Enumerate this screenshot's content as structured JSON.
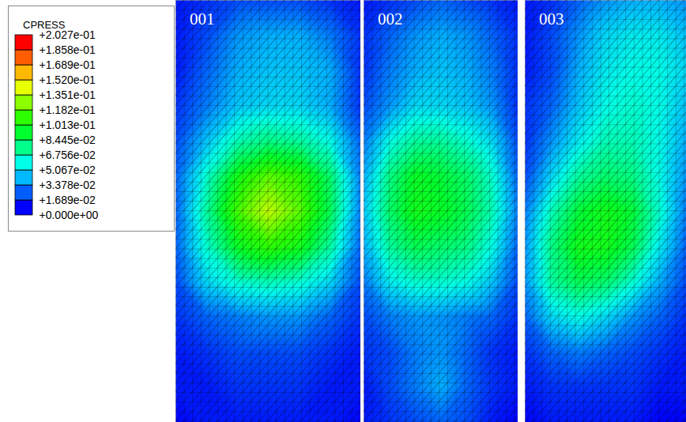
{
  "chart_data": {
    "type": "heatmap",
    "tick_labels": false,
    "legend": "top-left",
    "panels": [
      {
        "title": "001",
        "values": [
          [
            0.005,
            0.01,
            0.015,
            0.015,
            0.015,
            0.01,
            0.005
          ],
          [
            0.005,
            0.015,
            0.03,
            0.035,
            0.035,
            0.025,
            0.01
          ],
          [
            0.005,
            0.02,
            0.035,
            0.04,
            0.04,
            0.035,
            0.01
          ],
          [
            0.01,
            0.025,
            0.04,
            0.045,
            0.045,
            0.035,
            0.01
          ],
          [
            0.015,
            0.04,
            0.065,
            0.075,
            0.07,
            0.055,
            0.02
          ],
          [
            0.02,
            0.06,
            0.1,
            0.12,
            0.11,
            0.08,
            0.025
          ],
          [
            0.02,
            0.07,
            0.115,
            0.14,
            0.12,
            0.085,
            0.025
          ],
          [
            0.02,
            0.06,
            0.095,
            0.11,
            0.1,
            0.07,
            0.02
          ],
          [
            0.015,
            0.045,
            0.06,
            0.065,
            0.06,
            0.045,
            0.015
          ],
          [
            0.01,
            0.02,
            0.025,
            0.03,
            0.03,
            0.02,
            0.01
          ],
          [
            0.005,
            0.01,
            0.015,
            0.015,
            0.015,
            0.01,
            0.005
          ],
          [
            0.005,
            0.005,
            0.01,
            0.01,
            0.01,
            0.005,
            0.005
          ],
          [
            0,
            0.005,
            0.005,
            0.005,
            0.005,
            0.005,
            0
          ]
        ]
      },
      {
        "title": "002",
        "values": [
          [
            0.005,
            0.01,
            0.015,
            0.02,
            0.015,
            0.01,
            0.005
          ],
          [
            0.01,
            0.02,
            0.03,
            0.035,
            0.03,
            0.02,
            0.01
          ],
          [
            0.01,
            0.025,
            0.035,
            0.04,
            0.035,
            0.025,
            0.01
          ],
          [
            0.015,
            0.03,
            0.045,
            0.045,
            0.04,
            0.03,
            0.01
          ],
          [
            0.025,
            0.055,
            0.07,
            0.07,
            0.06,
            0.045,
            0.015
          ],
          [
            0.035,
            0.075,
            0.095,
            0.09,
            0.08,
            0.06,
            0.02
          ],
          [
            0.04,
            0.08,
            0.1,
            0.095,
            0.085,
            0.065,
            0.025
          ],
          [
            0.035,
            0.07,
            0.085,
            0.08,
            0.075,
            0.055,
            0.02
          ],
          [
            0.025,
            0.05,
            0.06,
            0.06,
            0.055,
            0.04,
            0.015
          ],
          [
            0.015,
            0.025,
            0.03,
            0.03,
            0.025,
            0.02,
            0.01
          ],
          [
            0.01,
            0.015,
            0.025,
            0.03,
            0.02,
            0.01,
            0.005
          ],
          [
            0.005,
            0.015,
            0.025,
            0.035,
            0.02,
            0.01,
            0.005
          ],
          [
            0.005,
            0.01,
            0.015,
            0.02,
            0.015,
            0.005,
            0
          ]
        ]
      },
      {
        "title": "003",
        "values": [
          [
            0.005,
            0.01,
            0.02,
            0.03,
            0.035,
            0.035,
            0.03
          ],
          [
            0.005,
            0.015,
            0.03,
            0.045,
            0.05,
            0.05,
            0.04
          ],
          [
            0.005,
            0.015,
            0.035,
            0.05,
            0.055,
            0.055,
            0.045
          ],
          [
            0.01,
            0.02,
            0.04,
            0.055,
            0.06,
            0.055,
            0.04
          ],
          [
            0.01,
            0.03,
            0.05,
            0.065,
            0.065,
            0.055,
            0.035
          ],
          [
            0.015,
            0.045,
            0.07,
            0.08,
            0.075,
            0.055,
            0.03
          ],
          [
            0.025,
            0.065,
            0.09,
            0.1,
            0.09,
            0.06,
            0.025
          ],
          [
            0.03,
            0.075,
            0.1,
            0.1,
            0.085,
            0.05,
            0.02
          ],
          [
            0.03,
            0.07,
            0.085,
            0.08,
            0.06,
            0.035,
            0.015
          ],
          [
            0.02,
            0.045,
            0.055,
            0.045,
            0.03,
            0.02,
            0.01
          ],
          [
            0.01,
            0.02,
            0.025,
            0.02,
            0.015,
            0.01,
            0.005
          ],
          [
            0.005,
            0.01,
            0.01,
            0.01,
            0.01,
            0.005,
            0.005
          ],
          [
            0,
            0.005,
            0.005,
            0.005,
            0.005,
            0,
            0
          ]
        ]
      }
    ],
    "colorbar": {
      "label": "CPRESS",
      "range": [
        0,
        0.2027
      ],
      "ticks": [
        {
          "value": 0.2027,
          "label": "+2.027e-01"
        },
        {
          "value": 0.1858,
          "label": "+1.858e-01"
        },
        {
          "value": 0.1689,
          "label": "+1.689e-01"
        },
        {
          "value": 0.152,
          "label": "+1.520e-01"
        },
        {
          "value": 0.1351,
          "label": "+1.351e-01"
        },
        {
          "value": 0.1182,
          "label": "+1.182e-01"
        },
        {
          "value": 0.1013,
          "label": "+1.013e-01"
        },
        {
          "value": 0.08445,
          "label": "+8.445e-02"
        },
        {
          "value": 0.06756,
          "label": "+6.756e-02"
        },
        {
          "value": 0.05067,
          "label": "+5.067e-02"
        },
        {
          "value": 0.03378,
          "label": "+3.378e-02"
        },
        {
          "value": 0.01689,
          "label": "+1.689e-02"
        },
        {
          "value": 0,
          "label": "+0.000e+00"
        }
      ],
      "colors": [
        "#0000ff",
        "#005dff",
        "#00b9ff",
        "#00ffe8",
        "#00ff8b",
        "#00ff2e",
        "#2eff00",
        "#8bff00",
        "#e8ff00",
        "#ffb900",
        "#ff5d00",
        "#ff0000"
      ]
    }
  }
}
